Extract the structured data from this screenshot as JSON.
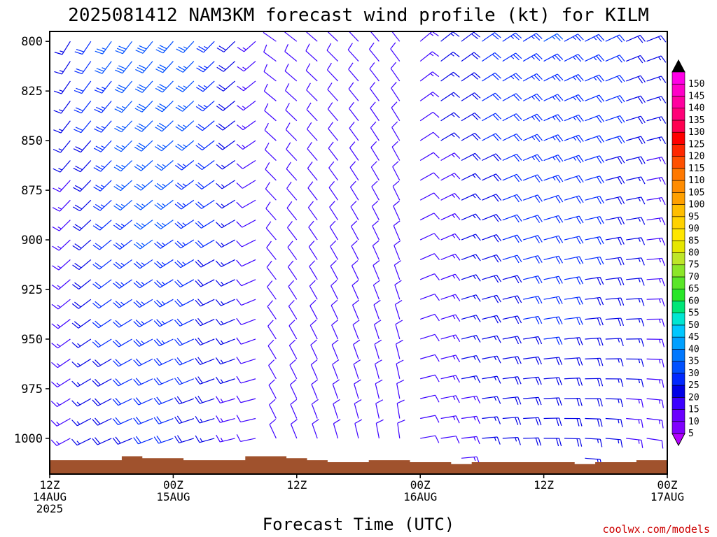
{
  "chart_data": {
    "type": "wind_profile",
    "title": "2025081412 NAM3KM forecast wind profile (kt) for KILM",
    "xlabel": "Forecast Time (UTC)",
    "ylabel": "",
    "y_unit": "hPa",
    "y_ticks": [
      "800",
      "825",
      "850",
      "875",
      "900",
      "925",
      "950",
      "975",
      "1000"
    ],
    "y_range": [
      1018,
      795
    ],
    "x_ticks": [
      {
        "hour": 0,
        "line1": "12Z",
        "line2": "14AUG",
        "line3": "2025"
      },
      {
        "hour": 12,
        "line1": "00Z",
        "line2": "15AUG",
        "line3": ""
      },
      {
        "hour": 24,
        "line1": "12Z",
        "line2": "",
        "line3": ""
      },
      {
        "hour": 36,
        "line1": "00Z",
        "line2": "16AUG",
        "line3": ""
      },
      {
        "hour": 48,
        "line1": "12Z",
        "line2": "",
        "line3": ""
      },
      {
        "hour": 60,
        "line1": "00Z",
        "line2": "17AUG",
        "line3": ""
      }
    ],
    "x_range_hours": [
      0,
      60
    ],
    "forecast_hours": [
      0,
      2,
      4,
      6,
      8,
      10,
      12,
      14,
      16,
      18,
      20,
      22,
      24,
      26,
      28,
      30,
      32,
      34,
      36,
      38,
      40,
      42,
      44,
      46,
      48,
      50,
      52,
      54,
      56,
      58,
      60
    ],
    "pressure_levels": [
      800,
      810,
      820,
      830,
      840,
      850,
      860,
      870,
      880,
      890,
      900,
      910,
      920,
      930,
      940,
      950,
      960,
      970,
      980,
      990,
      1000,
      1010
    ],
    "surface_pressure": [
      1011,
      1011,
      1011,
      1011,
      1009,
      1010,
      1010,
      1011,
      1011,
      1011,
      1009,
      1009,
      1010,
      1011,
      1012,
      1012,
      1011,
      1011,
      1012,
      1012,
      1013,
      1012,
      1012,
      1012,
      1012,
      1012,
      1013,
      1012,
      1012,
      1011,
      1011
    ],
    "surface_color": "#a0522d",
    "wind_regimes": [
      {
        "hours": [
          0,
          22
        ],
        "levels": [
          800,
          1005
        ],
        "from_direction_deg": 235,
        "speed_kt": [
          10,
          30
        ],
        "note": "southwesterly"
      },
      {
        "hours": [
          22,
          36
        ],
        "levels": [
          800,
          1005
        ],
        "from_direction_deg": 330,
        "speed_kt": [
          5,
          15
        ],
        "note": "light north-northwesterly"
      },
      {
        "hours": [
          36,
          60
        ],
        "levels": [
          800,
          1005
        ],
        "from_direction_deg": 75,
        "speed_kt": [
          5,
          25
        ],
        "note": "east-northeasterly"
      }
    ],
    "colorbar": {
      "unit": "kt",
      "labels": [
        5,
        10,
        15,
        20,
        25,
        30,
        35,
        40,
        45,
        50,
        55,
        60,
        65,
        70,
        75,
        80,
        85,
        90,
        95,
        100,
        105,
        110,
        115,
        120,
        125,
        130,
        135,
        140,
        145,
        150
      ],
      "colors": [
        "#8000ff",
        "#6a00ff",
        "#3c00ff",
        "#0000e6",
        "#0028ff",
        "#0050ff",
        "#0078ff",
        "#00a0ff",
        "#00c8ff",
        "#00e6d2",
        "#00e678",
        "#28e628",
        "#5ae628",
        "#8ce628",
        "#bee628",
        "#e6e600",
        "#ffe600",
        "#ffd200",
        "#ffbe00",
        "#ffa000",
        "#ff8c00",
        "#ff7800",
        "#ff5000",
        "#ff2800",
        "#ff0000",
        "#ff0050",
        "#ff0078",
        "#ff00a0",
        "#ff00c8",
        "#ff00e6"
      ],
      "arrow_low_color": "#b400ff",
      "arrow_high_color": "#000000"
    }
  },
  "watermark": "coolwx.com/models"
}
